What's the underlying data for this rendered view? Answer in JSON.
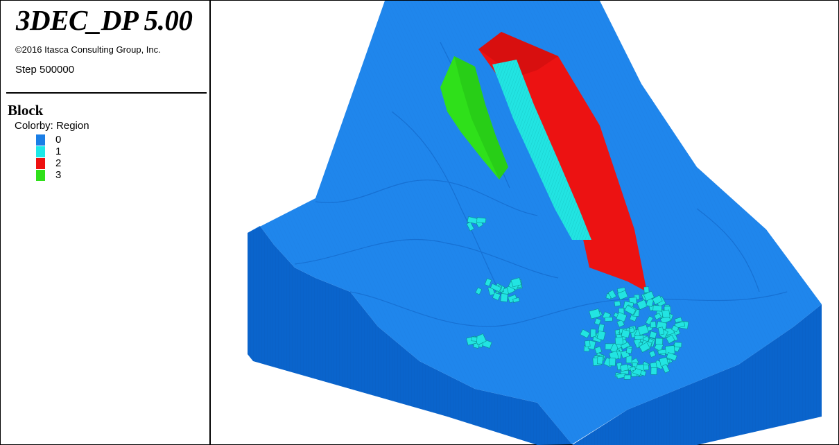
{
  "app": {
    "title": "3DEC_DP 5.00",
    "copyright": "©2016 Itasca Consulting Group, Inc.",
    "step": "Step 500000"
  },
  "legend": {
    "section_title": "Block",
    "colorby": "Colorby: Region",
    "items": [
      {
        "label": "0",
        "color": "#1a7ee6"
      },
      {
        "label": "1",
        "color": "#1de8e8"
      },
      {
        "label": "2",
        "color": "#ee1111"
      },
      {
        "label": "3",
        "color": "#2fe01a"
      }
    ]
  },
  "scene": {
    "icon": "3d-block-model",
    "colors": {
      "slope_surface": "#1f86ec",
      "side_wall": "#0a64cc",
      "region_1": "#22e4e2",
      "region_2": "#ec1212",
      "region_3": "#2fe01a"
    }
  }
}
